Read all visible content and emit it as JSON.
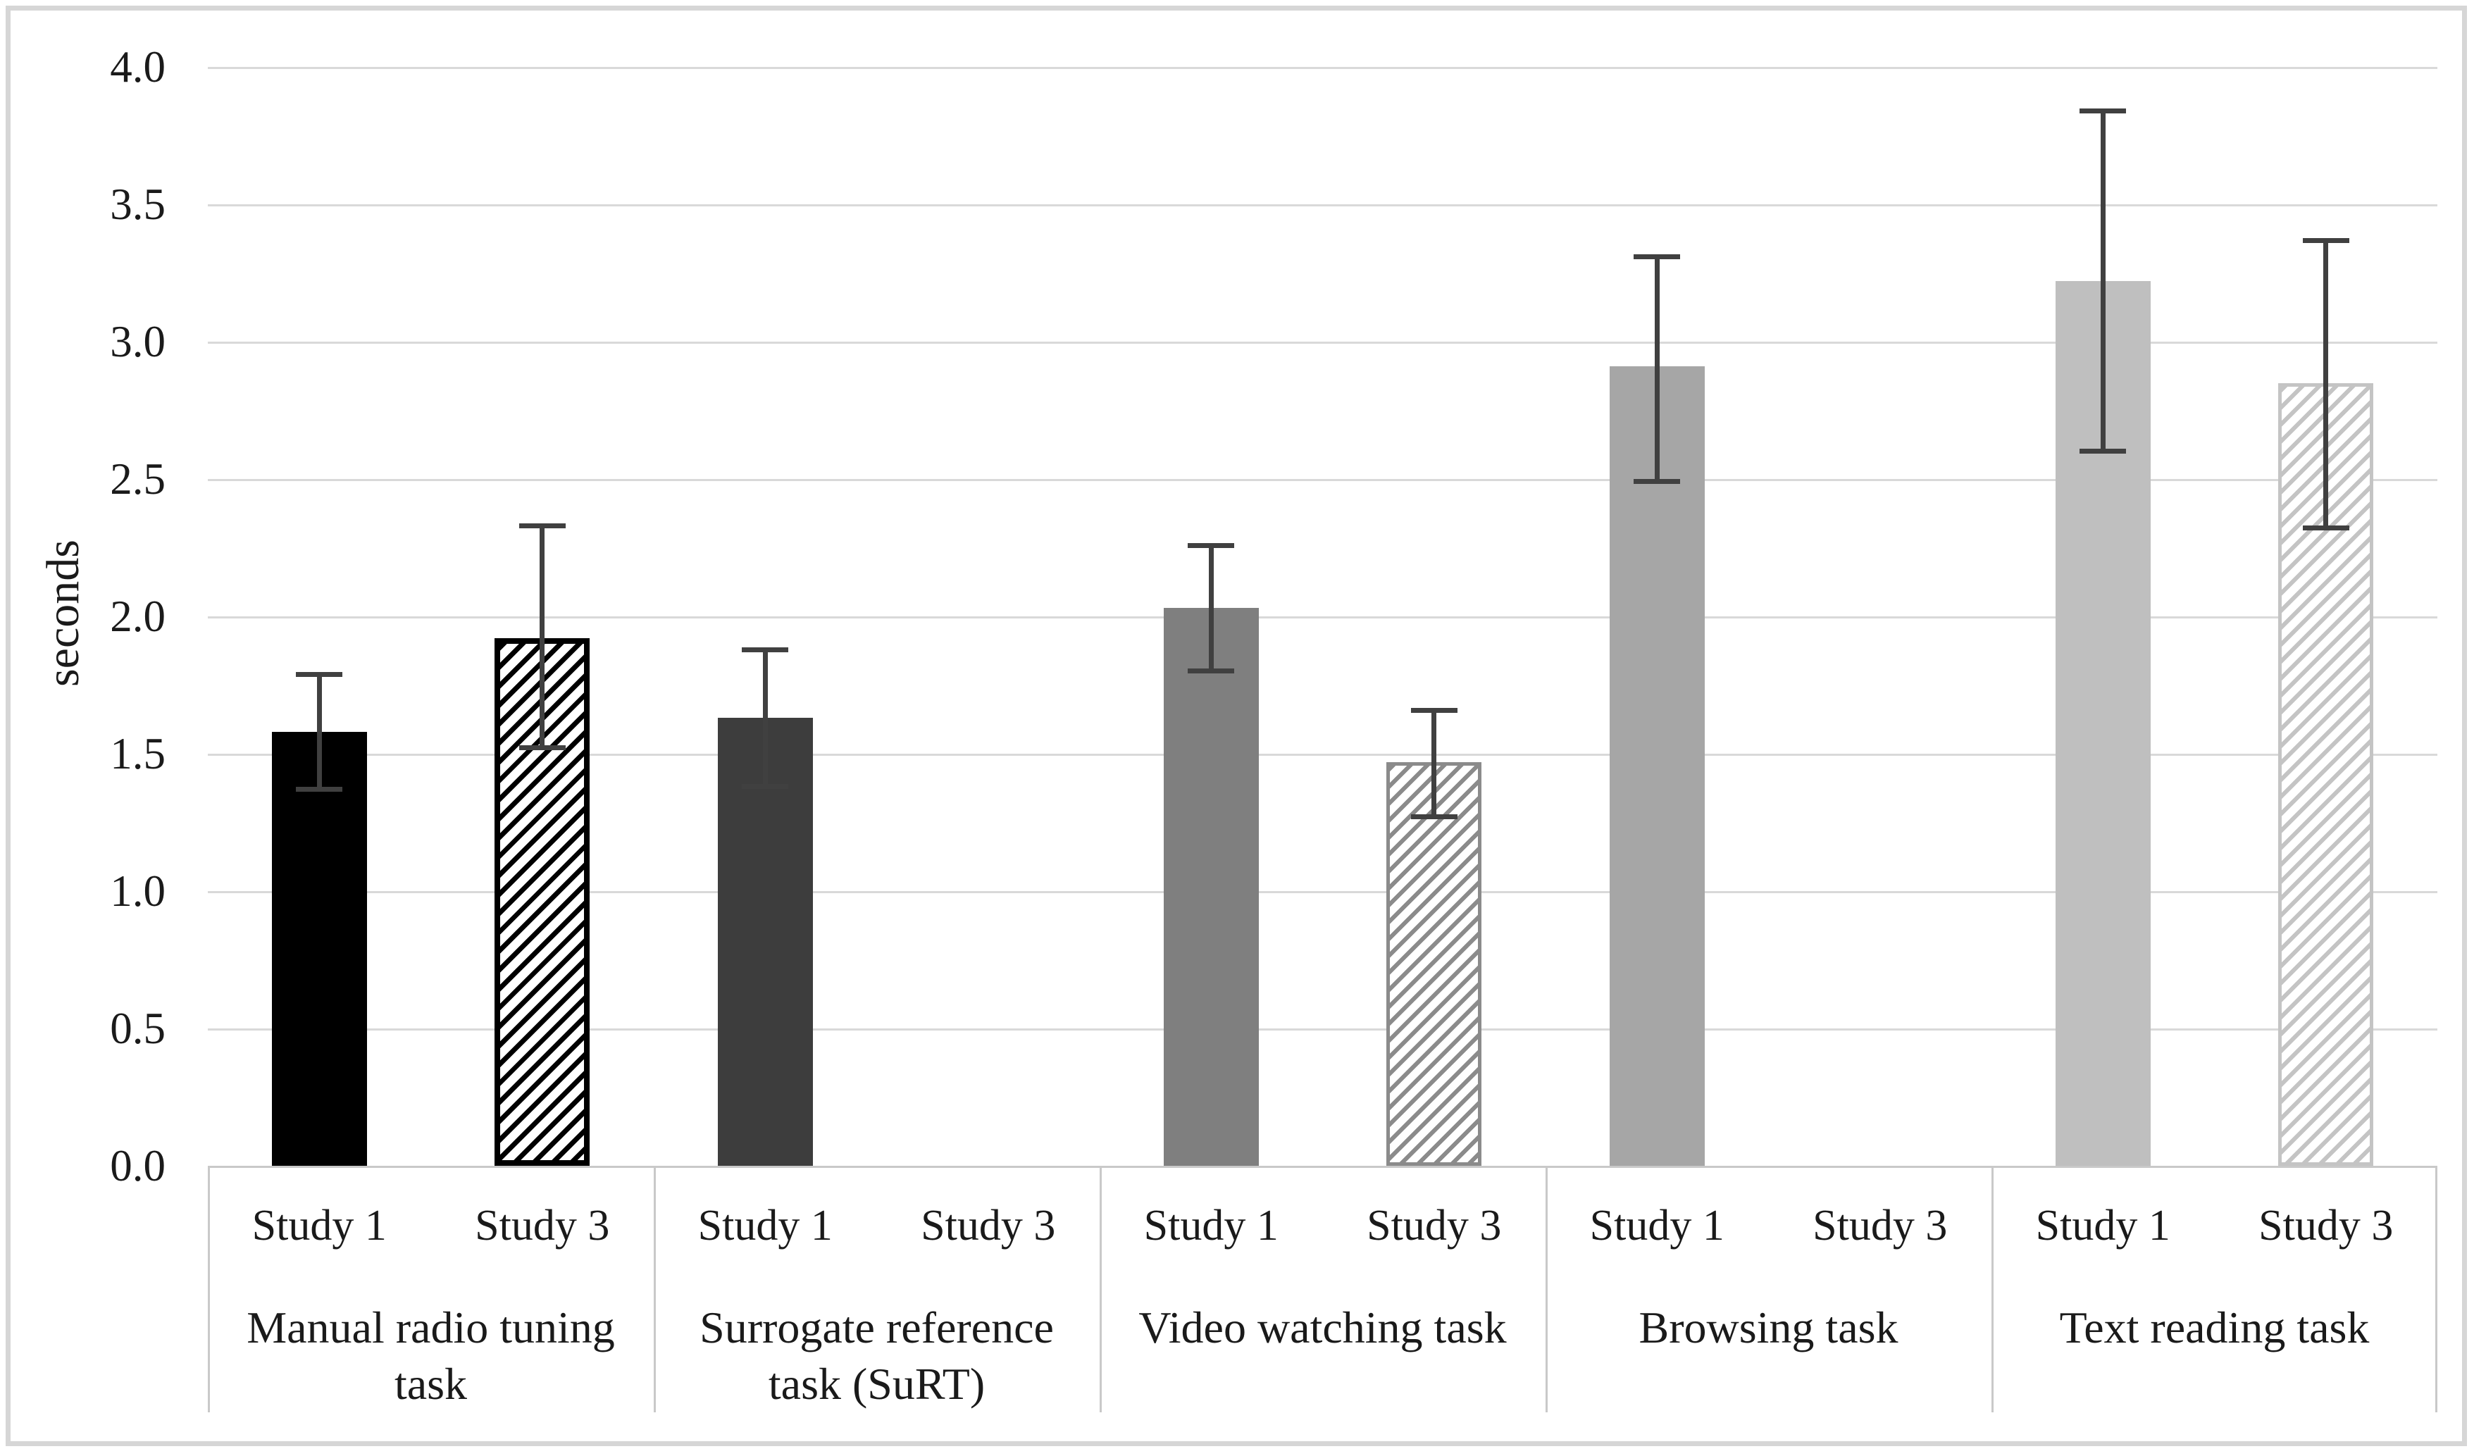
{
  "chart_data": {
    "type": "bar",
    "title": "",
    "xlabel": "",
    "ylabel": "seconds",
    "ylim": [
      0.0,
      4.0
    ],
    "ytick_step": 0.5,
    "ytick_labels": [
      "0.0",
      "0.5",
      "1.0",
      "1.5",
      "2.0",
      "2.5",
      "3.0",
      "3.5",
      "4.0"
    ],
    "grid": "horizontal",
    "legend_position": "none",
    "error_bars": true,
    "groups": [
      {
        "label": "Manual radio tuning task",
        "series": [
          {
            "study": "Study 1",
            "value": 1.58,
            "ci_low": 1.37,
            "ci_high": 1.79,
            "fill": "solid-black"
          },
          {
            "study": "Study 3",
            "value": 1.92,
            "ci_low": 1.52,
            "ci_high": 2.33,
            "fill": "hatch-black"
          }
        ]
      },
      {
        "label": "Surrogate reference task (SuRT)",
        "series": [
          {
            "study": "Study 1",
            "value": 1.63,
            "ci_low": 1.38,
            "ci_high": 1.88,
            "fill": "solid-darkgray"
          },
          {
            "study": "Study 3",
            "value": null,
            "ci_low": null,
            "ci_high": null,
            "fill": null
          }
        ]
      },
      {
        "label": "Video watching task",
        "series": [
          {
            "study": "Study 1",
            "value": 2.03,
            "ci_low": 1.8,
            "ci_high": 2.26,
            "fill": "solid-gray"
          },
          {
            "study": "Study 3",
            "value": 1.47,
            "ci_low": 1.27,
            "ci_high": 1.66,
            "fill": "hatch-gray"
          }
        ]
      },
      {
        "label": "Browsing task",
        "series": [
          {
            "study": "Study 1",
            "value": 2.91,
            "ci_low": 2.49,
            "ci_high": 3.31,
            "fill": "solid-midgray"
          },
          {
            "study": "Study 3",
            "value": null,
            "ci_low": null,
            "ci_high": null,
            "fill": null
          }
        ]
      },
      {
        "label": "Text reading task",
        "series": [
          {
            "study": "Study 1",
            "value": 3.22,
            "ci_low": 2.6,
            "ci_high": 3.84,
            "fill": "solid-lightgray"
          },
          {
            "study": "Study 3",
            "value": 2.85,
            "ci_low": 2.32,
            "ci_high": 3.37,
            "fill": "hatch-lightgray"
          }
        ]
      }
    ],
    "colors": {
      "solid_black": "#000000",
      "solid_darkgray": "#3d3d3d",
      "solid_gray": "#7f7f7f",
      "solid_midgray": "#a6a6a6",
      "solid_lightgray": "#bfbfbf",
      "gridline": "#d9d9d9",
      "error_bar": "#404040",
      "figure_border": "#d6d6d6",
      "text": "#1a1a1a",
      "background": "#ffffff"
    }
  }
}
